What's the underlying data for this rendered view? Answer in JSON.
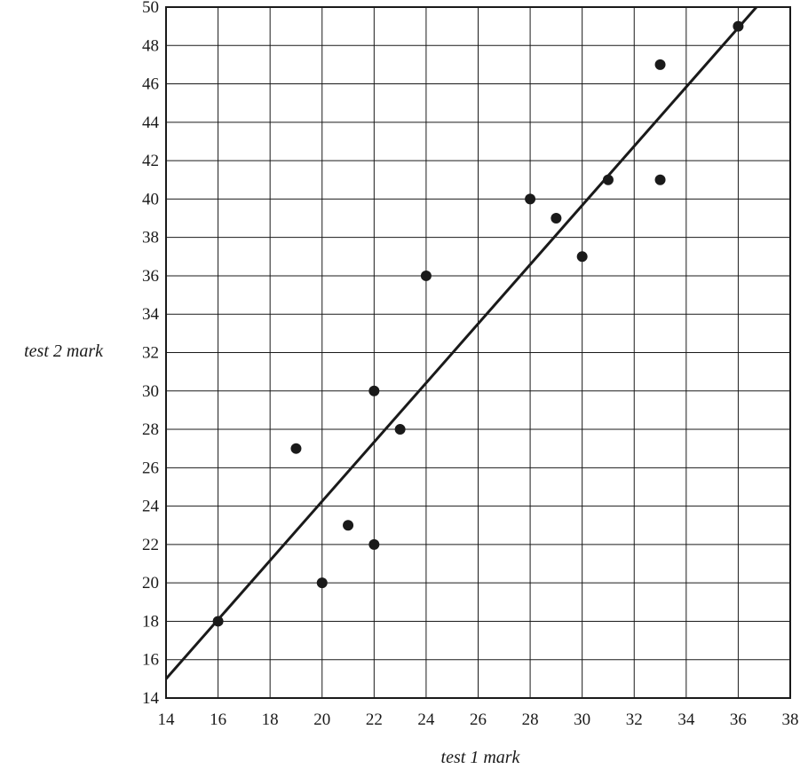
{
  "chart_data": {
    "type": "scatter",
    "title": "",
    "xlabel": "test 1 mark",
    "ylabel": "test 2 mark",
    "xlim": [
      14,
      38
    ],
    "ylim": [
      14,
      50
    ],
    "x_ticks": [
      14,
      16,
      18,
      20,
      22,
      24,
      26,
      28,
      30,
      32,
      34,
      36,
      38
    ],
    "y_ticks": [
      14,
      16,
      18,
      20,
      22,
      24,
      26,
      28,
      30,
      32,
      34,
      36,
      38,
      40,
      42,
      44,
      46,
      48,
      50
    ],
    "grid": true,
    "points": [
      {
        "x": 16,
        "y": 18
      },
      {
        "x": 19,
        "y": 27
      },
      {
        "x": 20,
        "y": 20
      },
      {
        "x": 21,
        "y": 23
      },
      {
        "x": 22,
        "y": 22
      },
      {
        "x": 22,
        "y": 30
      },
      {
        "x": 23,
        "y": 28
      },
      {
        "x": 24,
        "y": 36
      },
      {
        "x": 28,
        "y": 40
      },
      {
        "x": 29,
        "y": 39
      },
      {
        "x": 30,
        "y": 37
      },
      {
        "x": 31,
        "y": 41
      },
      {
        "x": 33,
        "y": 41
      },
      {
        "x": 33,
        "y": 47
      },
      {
        "x": 36,
        "y": 49
      }
    ],
    "line_of_best_fit": {
      "from": [
        14,
        15
      ],
      "to": [
        36.7,
        50
      ]
    },
    "colors": {
      "axis": "#1a1a1a",
      "grid": "#1a1a1a",
      "points": "#1a1a1a"
    }
  }
}
